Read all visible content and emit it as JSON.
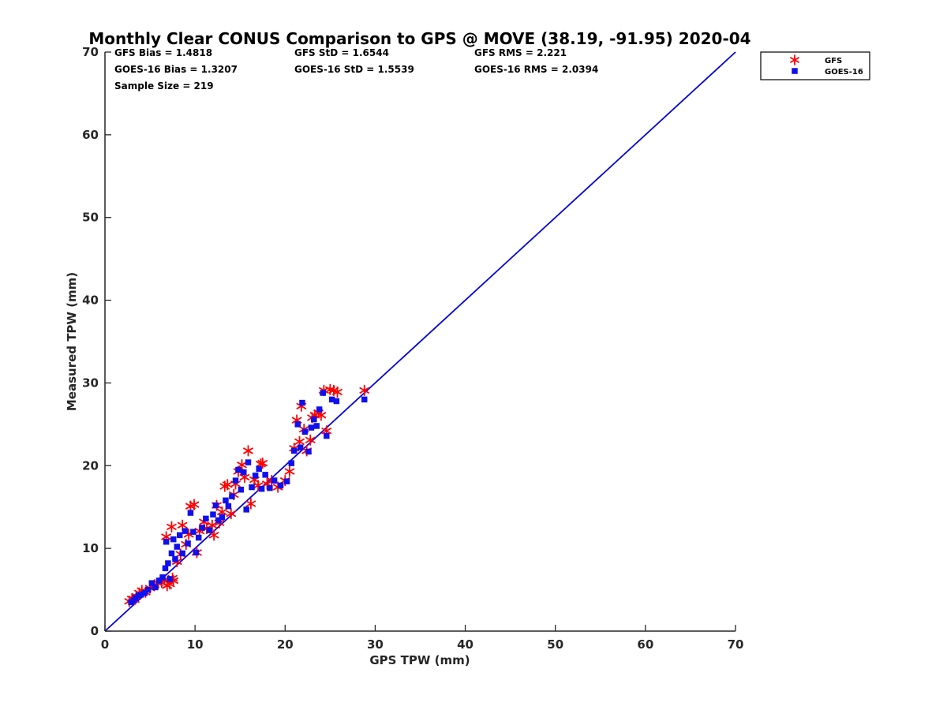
{
  "chart_data": {
    "type": "scatter",
    "title": "Monthly Clear CONUS Comparison to GPS @ MOVE (38.19, -91.95) 2020-04",
    "xlabel": "GPS TPW (mm)",
    "ylabel": "Measured TPW (mm)",
    "xlim": [
      0,
      70
    ],
    "ylim": [
      0,
      70
    ],
    "xticks": [
      0,
      10,
      20,
      30,
      40,
      50,
      60,
      70
    ],
    "yticks": [
      0,
      10,
      20,
      30,
      40,
      50,
      60,
      70
    ],
    "grid": false,
    "legend_position": "outside top-right",
    "stats": [
      [
        "GFS Bias = 1.4818",
        "GFS StD = 1.6544",
        "GFS RMS = 2.221"
      ],
      [
        "GOES-16 Bias = 1.3207",
        "GOES-16 StD = 1.5539",
        "GOES-16 RMS = 2.0394"
      ],
      [
        "Sample Size = 219"
      ]
    ],
    "reference_line": {
      "x": [
        0,
        70
      ],
      "y": [
        0,
        70
      ],
      "color": "#0000dd"
    },
    "series": [
      {
        "name": "GFS",
        "marker": "asterisk",
        "color": "#ff0000",
        "points": [
          [
            2.7,
            3.6
          ],
          [
            3,
            3.9
          ],
          [
            3.3,
            3.8
          ],
          [
            3.5,
            4.2
          ],
          [
            3.8,
            4.6
          ],
          [
            4.1,
            4.9
          ],
          [
            4.5,
            4.7
          ],
          [
            5,
            5.2
          ],
          [
            5.5,
            5.6
          ],
          [
            5.9,
            5.8
          ],
          [
            6.3,
            5.9
          ],
          [
            6.6,
            6.2
          ],
          [
            6.9,
            5.5
          ],
          [
            7.2,
            5.7
          ],
          [
            7.5,
            6.4
          ],
          [
            7.6,
            6.1
          ],
          [
            6.8,
            11.4
          ],
          [
            7.4,
            12.6
          ],
          [
            8,
            8.4
          ],
          [
            8.4,
            9.3
          ],
          [
            8.6,
            12.8
          ],
          [
            9,
            10.5
          ],
          [
            9.3,
            11.7
          ],
          [
            9.5,
            15.1
          ],
          [
            9.9,
            15.3
          ],
          [
            10.2,
            9.5
          ],
          [
            10.5,
            12.1
          ],
          [
            11,
            13.2
          ],
          [
            11.3,
            12.4
          ],
          [
            11.9,
            12.8
          ],
          [
            12.1,
            11.6
          ],
          [
            12.4,
            15.2
          ],
          [
            12.7,
            13.1
          ],
          [
            13,
            14.4
          ],
          [
            13.3,
            17.5
          ],
          [
            13.6,
            17.7
          ],
          [
            14,
            14.2
          ],
          [
            14.3,
            16.5
          ],
          [
            14.5,
            17.8
          ],
          [
            14.8,
            19.3
          ],
          [
            15.2,
            20.1
          ],
          [
            15.5,
            18.6
          ],
          [
            15.9,
            21.8
          ],
          [
            16.2,
            15.4
          ],
          [
            16.6,
            18.3
          ],
          [
            17,
            17.6
          ],
          [
            17.3,
            20.2
          ],
          [
            17.5,
            20.3
          ],
          [
            18,
            17.8
          ],
          [
            18.5,
            18.2
          ],
          [
            19.2,
            17.4
          ],
          [
            20,
            18.2
          ],
          [
            20.5,
            19.3
          ],
          [
            21,
            22.1
          ],
          [
            21.3,
            25.5
          ],
          [
            21.6,
            22.9
          ],
          [
            21.8,
            27.2
          ],
          [
            22.1,
            24.4
          ],
          [
            22.4,
            21.8
          ],
          [
            22.8,
            23.1
          ],
          [
            23,
            25.8
          ],
          [
            23.3,
            26.1
          ],
          [
            23.7,
            26.4
          ],
          [
            24,
            26.1
          ],
          [
            24.3,
            29.1
          ],
          [
            24.6,
            24.2
          ],
          [
            25,
            29.2
          ],
          [
            25.4,
            29.1
          ],
          [
            25.8,
            28.9
          ],
          [
            28.8,
            29.1
          ]
        ]
      },
      {
        "name": "GOES-16",
        "marker": "square",
        "color": "#1010ee",
        "points": [
          [
            2.9,
            3.5
          ],
          [
            3.2,
            3.7
          ],
          [
            3.4,
            4
          ],
          [
            3.7,
            4.3
          ],
          [
            4,
            4.4
          ],
          [
            4.4,
            4.6
          ],
          [
            4.8,
            5
          ],
          [
            5.2,
            5.8
          ],
          [
            5.6,
            5.3
          ],
          [
            6,
            6.1
          ],
          [
            6.4,
            6.5
          ],
          [
            6.7,
            7.6
          ],
          [
            6.8,
            10.8
          ],
          [
            7,
            8.2
          ],
          [
            7.2,
            6.3
          ],
          [
            7.4,
            9.4
          ],
          [
            7.6,
            11.1
          ],
          [
            7.8,
            8.7
          ],
          [
            8,
            10.2
          ],
          [
            8.3,
            11.6
          ],
          [
            8.6,
            9.4
          ],
          [
            8.9,
            12.1
          ],
          [
            9.2,
            10.6
          ],
          [
            9.5,
            14.3
          ],
          [
            9.8,
            12
          ],
          [
            10.1,
            9.5
          ],
          [
            10.4,
            11.3
          ],
          [
            10.8,
            12.5
          ],
          [
            11.2,
            13.6
          ],
          [
            11.6,
            12.2
          ],
          [
            12,
            14.1
          ],
          [
            12.3,
            15.2
          ],
          [
            12.6,
            13.4
          ],
          [
            13,
            13.8
          ],
          [
            13.4,
            15.8
          ],
          [
            13.7,
            15.1
          ],
          [
            14.1,
            16.3
          ],
          [
            14.5,
            18.2
          ],
          [
            14.8,
            19.5
          ],
          [
            15.1,
            17.1
          ],
          [
            15.4,
            19.2
          ],
          [
            15.7,
            14.7
          ],
          [
            15.9,
            20.4
          ],
          [
            16.3,
            17.4
          ],
          [
            16.7,
            18.8
          ],
          [
            17.1,
            19.6
          ],
          [
            17.4,
            17.2
          ],
          [
            17.8,
            18.9
          ],
          [
            18.3,
            17.3
          ],
          [
            18.8,
            18.2
          ],
          [
            19.5,
            17.6
          ],
          [
            20.2,
            18.1
          ],
          [
            20.7,
            20.3
          ],
          [
            21,
            21.8
          ],
          [
            21.4,
            25
          ],
          [
            21.7,
            22.2
          ],
          [
            21.9,
            27.6
          ],
          [
            22.2,
            24.1
          ],
          [
            22.6,
            21.7
          ],
          [
            22.9,
            24.6
          ],
          [
            23.2,
            25.6
          ],
          [
            23.5,
            24.8
          ],
          [
            23.8,
            26.8
          ],
          [
            24.2,
            28.8
          ],
          [
            24.6,
            23.6
          ],
          [
            25.2,
            28
          ],
          [
            25.7,
            27.8
          ],
          [
            28.8,
            28
          ]
        ]
      }
    ]
  }
}
